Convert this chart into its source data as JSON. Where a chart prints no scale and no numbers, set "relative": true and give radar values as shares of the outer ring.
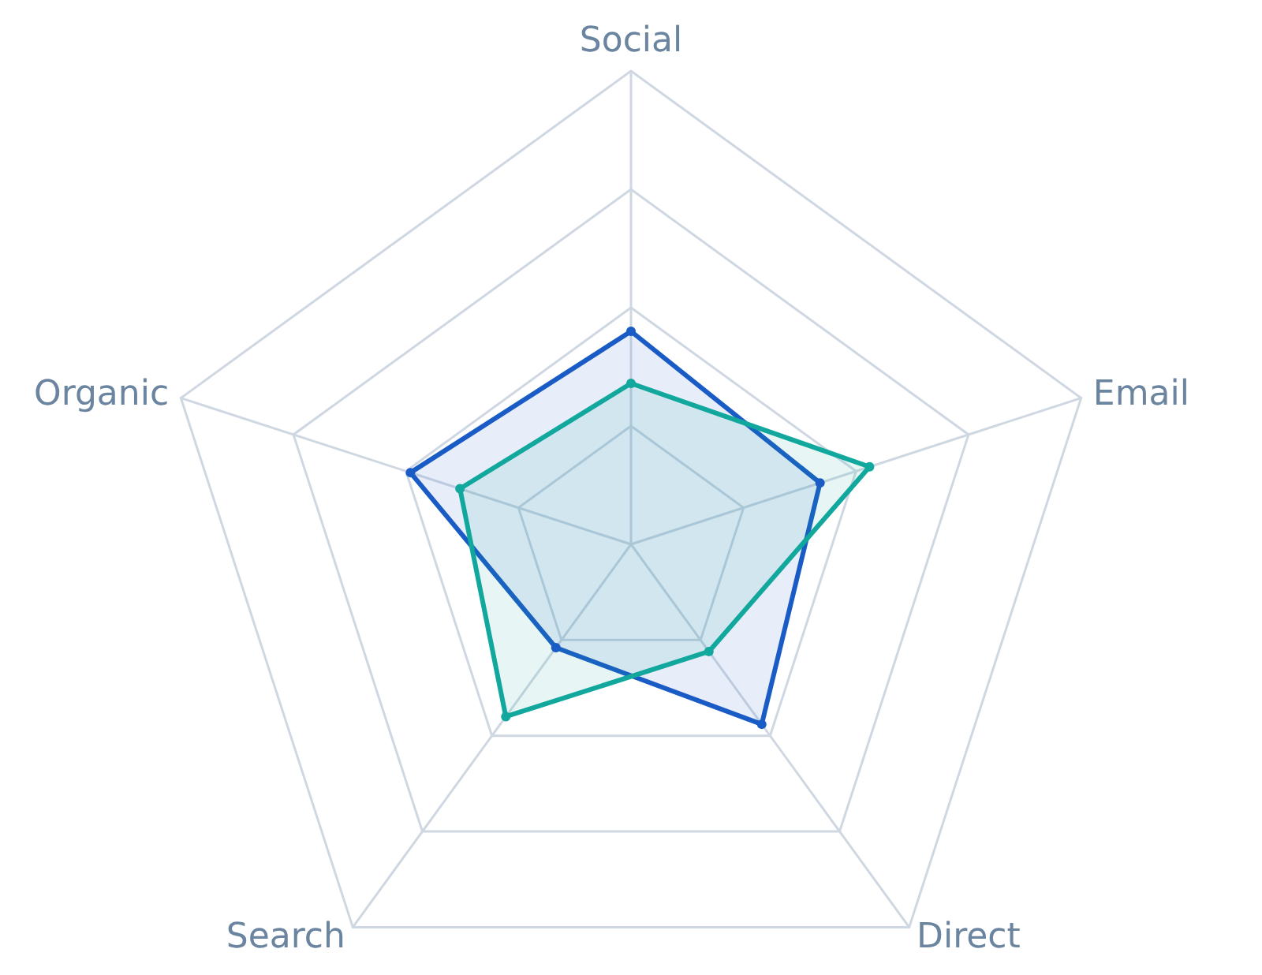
{
  "chart_data": {
    "type": "radar",
    "relative": true,
    "categories": [
      "Social",
      "Email",
      "Direct",
      "Search",
      "Organic"
    ],
    "series": [
      {
        "color": "#1a5cc6",
        "values": [
          0.45,
          0.42,
          0.47,
          0.27,
          0.49
        ]
      },
      {
        "color": "#12a89e",
        "values": [
          0.34,
          0.53,
          0.28,
          0.45,
          0.38
        ]
      }
    ],
    "marker": "circle"
  }
}
